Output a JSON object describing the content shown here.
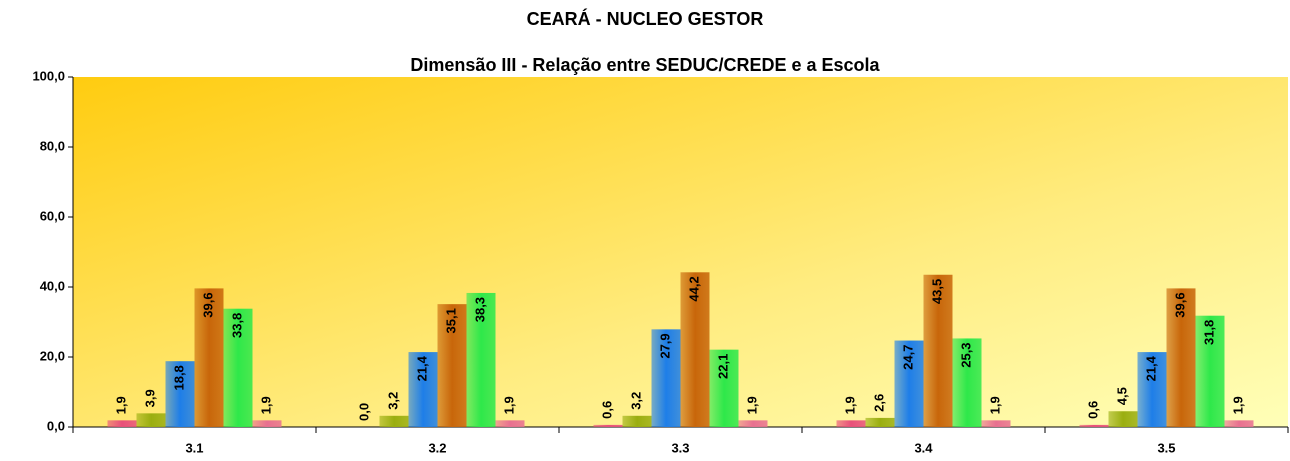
{
  "chart_data": {
    "type": "bar",
    "title": "CEARÁ - NUCLEO GESTOR",
    "subtitle": "Dimensão III - Relação entre SEDUC/CREDE e a Escola",
    "categories": [
      "3.1",
      "3.2",
      "3.3",
      "3.4",
      "3.5"
    ],
    "series": [
      {
        "color": "#e8507a",
        "values": [
          1.9,
          0.0,
          0.6,
          1.9,
          0.6
        ],
        "value_labels": [
          "1,9",
          "0,0",
          "0,6",
          "1,9",
          "0,6"
        ]
      },
      {
        "color": "#9aae10",
        "values": [
          3.9,
          3.2,
          3.2,
          2.6,
          4.5
        ],
        "value_labels": [
          "3,9",
          "3,2",
          "3,2",
          "2,6",
          "4,5"
        ]
      },
      {
        "color": "#1e7ee8",
        "values": [
          18.8,
          21.4,
          27.9,
          24.7,
          21.4
        ],
        "value_labels": [
          "18,8",
          "21,4",
          "27,9",
          "24,7",
          "21,4"
        ]
      },
      {
        "color": "#c8660a",
        "values": [
          39.6,
          35.1,
          44.2,
          43.5,
          39.6
        ],
        "value_labels": [
          "39,6",
          "35,1",
          "44,2",
          "43,5",
          "39,6"
        ]
      },
      {
        "color": "#2ee84a",
        "values": [
          33.8,
          38.3,
          22.1,
          25.3,
          31.8
        ],
        "value_labels": [
          "33,8",
          "38,3",
          "22,1",
          "25,3",
          "31,8"
        ]
      },
      {
        "color": "#e87090",
        "values": [
          1.9,
          1.9,
          1.9,
          1.9,
          1.9
        ],
        "value_labels": [
          "1,9",
          "1,9",
          "1,9",
          "1,9",
          "1,9"
        ]
      }
    ],
    "ylim": [
      0,
      100
    ],
    "yticks": [
      {
        "value": 0,
        "label": "0,0"
      },
      {
        "value": 20,
        "label": "20,0"
      },
      {
        "value": 40,
        "label": "40,0"
      },
      {
        "value": 60,
        "label": "60,0"
      },
      {
        "value": 80,
        "label": "80,0"
      },
      {
        "value": 100,
        "label": "100,0"
      }
    ]
  }
}
